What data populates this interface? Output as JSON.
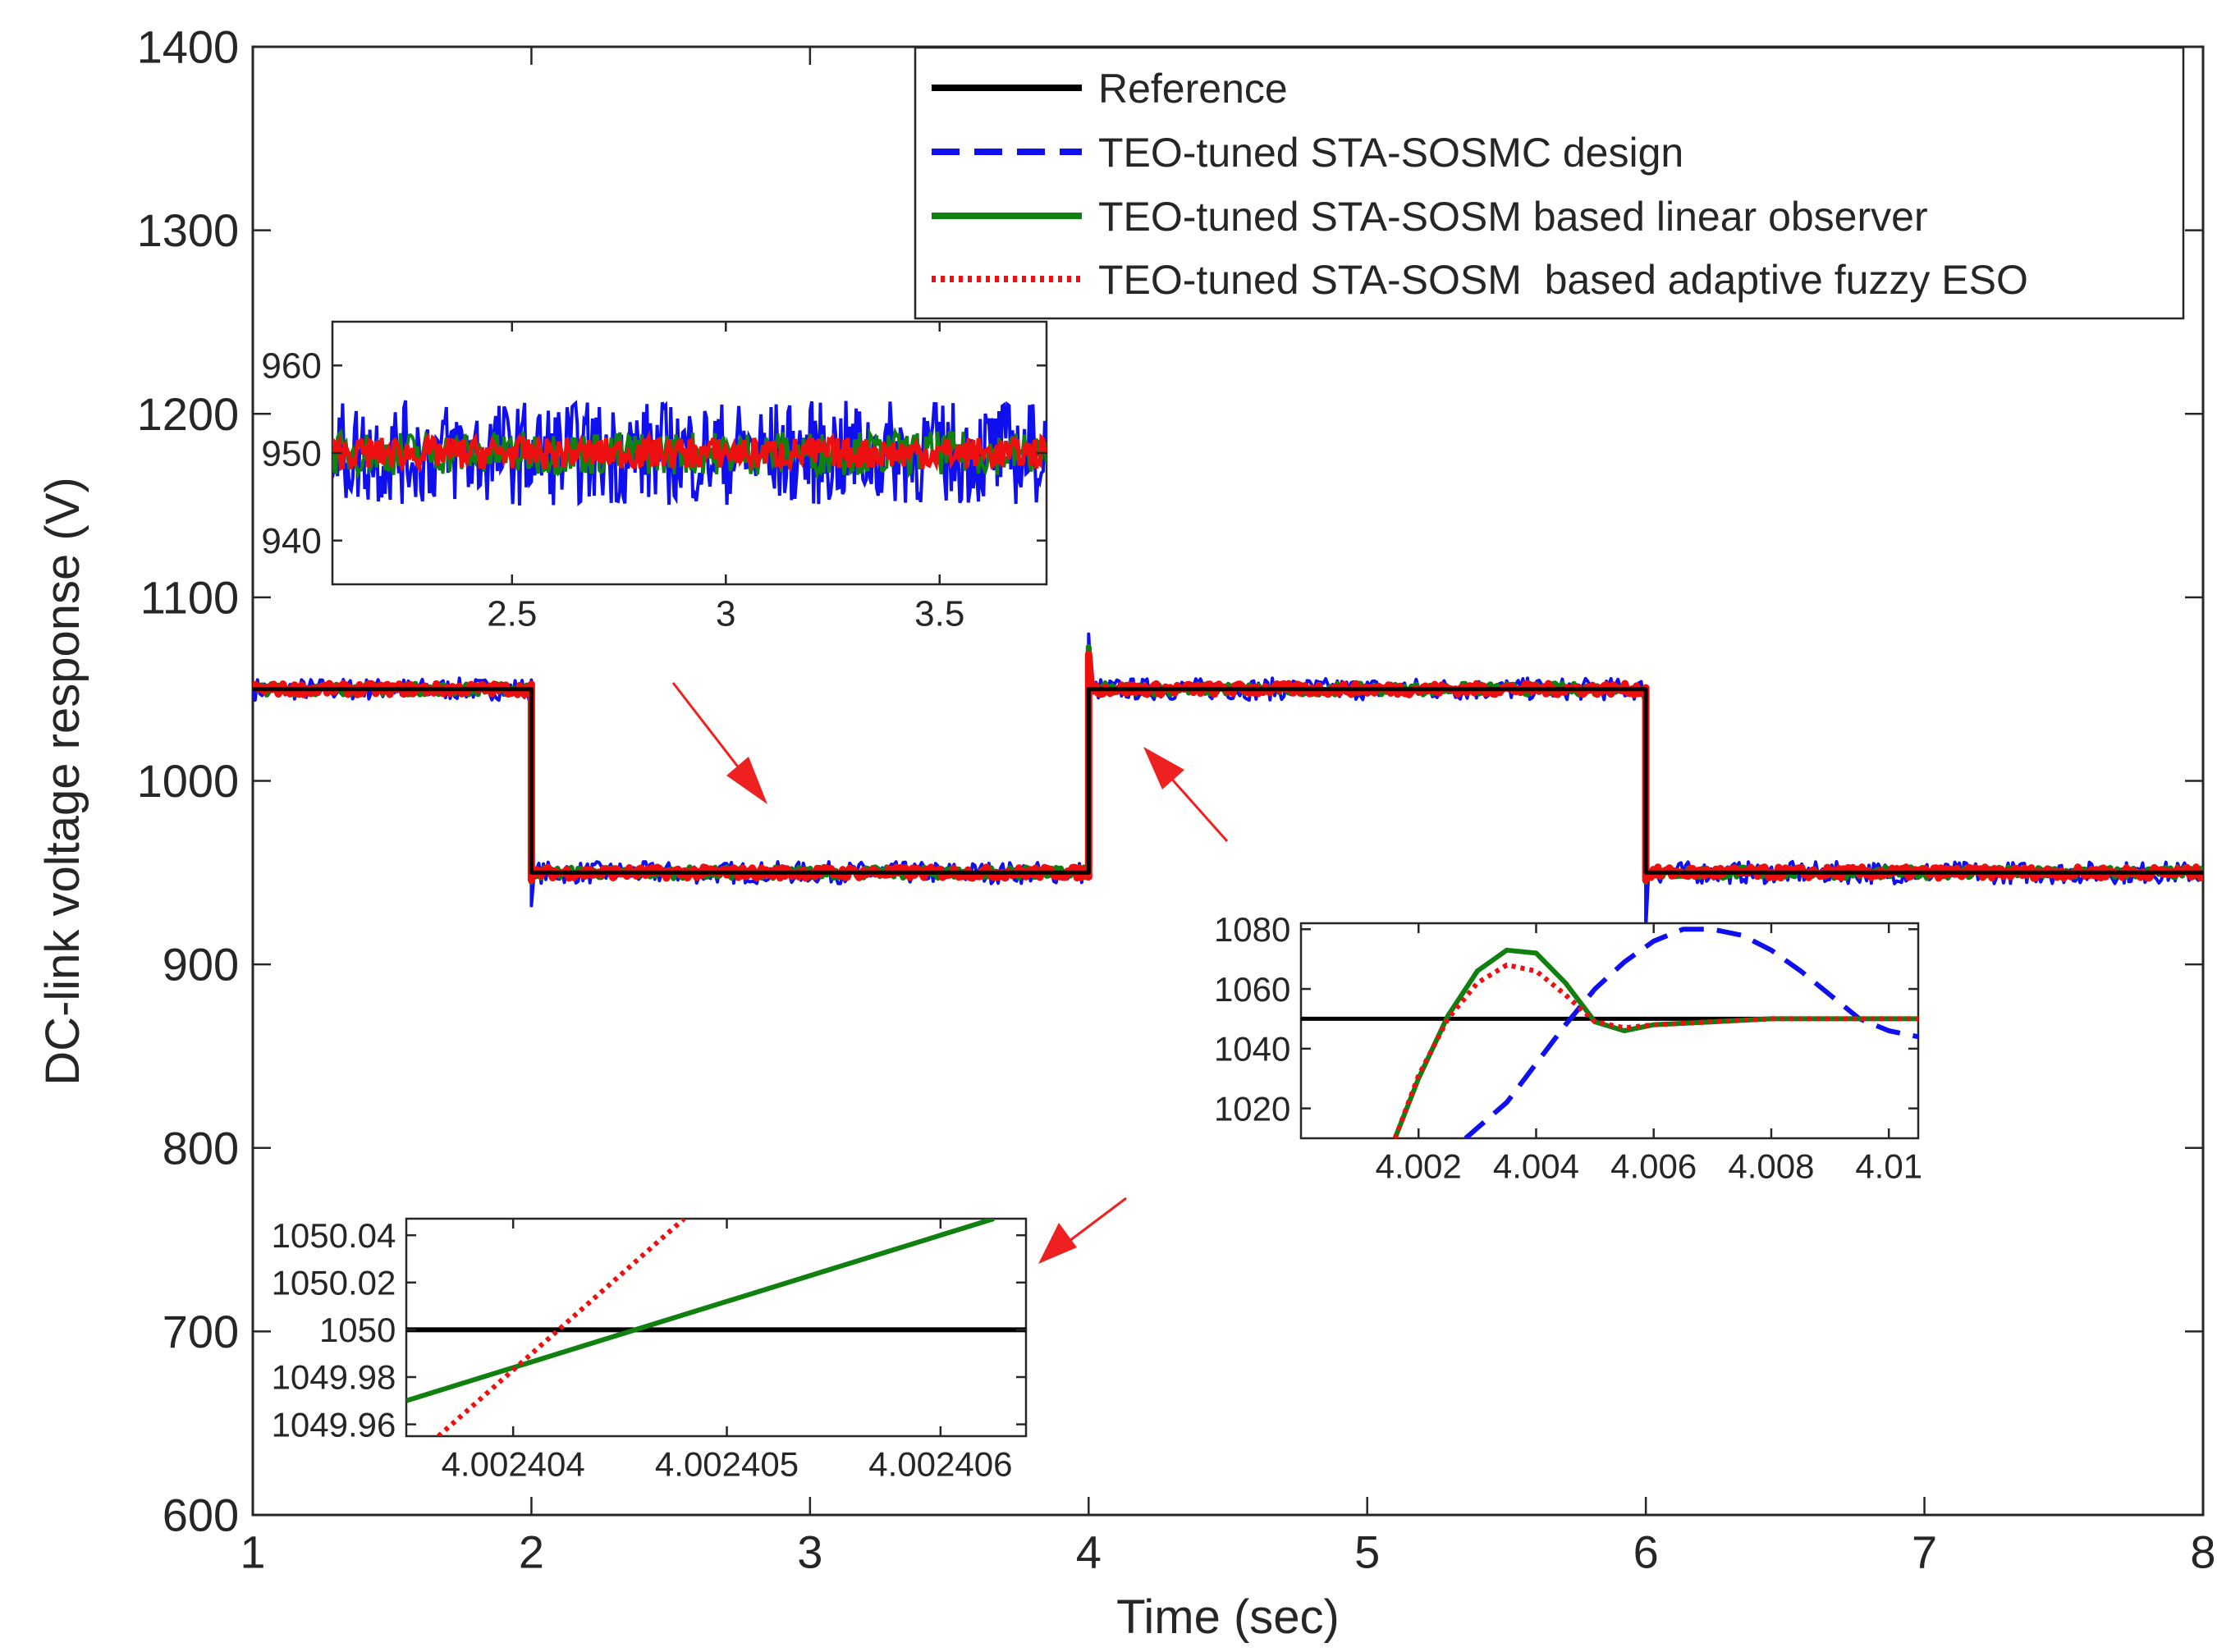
{
  "chart_data": [
    {
      "id": "main",
      "type": "line",
      "title": "",
      "xlabel": "Time (sec)",
      "ylabel": "DC-link voltage response (V)",
      "xlim": [
        1,
        8
      ],
      "ylim": [
        600,
        1400
      ],
      "xticks": [
        1,
        2,
        3,
        4,
        5,
        6,
        7,
        8
      ],
      "xtick_labels": [
        "1",
        "2",
        "3",
        "4",
        "5",
        "6",
        "7",
        "8"
      ],
      "yticks": [
        600,
        700,
        800,
        900,
        1000,
        1100,
        1200,
        1300,
        1400
      ],
      "ytick_labels": [
        "600",
        "700",
        "800",
        "900",
        "1000",
        "1100",
        "1200",
        "1300",
        "1400"
      ],
      "grid": false,
      "legend_position": "top-right",
      "series": [
        {
          "name": "Reference",
          "color": "#000000",
          "style": "solid",
          "x": [
            1,
            2,
            2,
            4,
            4,
            6,
            6,
            8
          ],
          "y": [
            1050,
            1050,
            950,
            950,
            1050,
            1050,
            950,
            950
          ]
        },
        {
          "name": "TEO-tuned STA-SOSMC design",
          "color": "#1010ee",
          "style": "dashed",
          "noise_amplitude": 6,
          "x": [
            1,
            2,
            2,
            2.01,
            4,
            4,
            4.01,
            6,
            6,
            6.01,
            8
          ],
          "y": [
            1050,
            1050,
            932,
            950,
            950,
            1080,
            1050,
            1050,
            920,
            950,
            950
          ]
        },
        {
          "name": "TEO-tuned STA-SOSM based linear observer",
          "color": "#108010",
          "style": "solid",
          "noise_amplitude": 3,
          "x": [
            1,
            2,
            2,
            2.01,
            4,
            4,
            4.01,
            6,
            6,
            6.01,
            8
          ],
          "y": [
            1050,
            1050,
            945,
            950,
            950,
            1073,
            1050,
            1050,
            945,
            950,
            950
          ]
        },
        {
          "name": "TEO-tuned STA-SOSM  based adaptive fuzzy ESO",
          "color": "#ee1010",
          "style": "dotted",
          "noise_amplitude": 3,
          "x": [
            1,
            2,
            2,
            2.01,
            4,
            4,
            4.01,
            6,
            6,
            6.01,
            8
          ],
          "y": [
            1050,
            1050,
            946,
            950,
            950,
            1069,
            1050,
            1050,
            946,
            950,
            950
          ]
        }
      ]
    },
    {
      "id": "inset-top",
      "type": "line",
      "xlim": [
        2.08,
        3.75
      ],
      "ylim": [
        935,
        965
      ],
      "xticks": [
        2.5,
        3,
        3.5
      ],
      "xtick_labels": [
        "2.5",
        "3",
        "3.5"
      ],
      "yticks": [
        940,
        950,
        960
      ],
      "ytick_labels": [
        "940",
        "950",
        "960"
      ],
      "series": [
        {
          "name": "TEO-tuned STA-SOSMC design",
          "color": "#1010ee",
          "center": 950,
          "amplitude": 6
        },
        {
          "name": "TEO-tuned STA-SOSM based linear observer",
          "color": "#108010",
          "center": 950,
          "amplitude": 2.5
        },
        {
          "name": "TEO-tuned STA-SOSM  based adaptive fuzzy ESO",
          "color": "#ee1010",
          "center": 950,
          "amplitude": 1.8
        }
      ]
    },
    {
      "id": "inset-right",
      "type": "line",
      "xlim": [
        4.0,
        4.0105
      ],
      "ylim": [
        1010,
        1082
      ],
      "xticks": [
        4.002,
        4.004,
        4.006,
        4.008,
        4.01
      ],
      "xtick_labels": [
        "4.002",
        "4.004",
        "4.006",
        "4.008",
        "4.01"
      ],
      "yticks": [
        1020,
        1040,
        1060,
        1080
      ],
      "ytick_labels": [
        "1020",
        "1040",
        "1060",
        "1080"
      ],
      "series": [
        {
          "name": "Reference",
          "color": "#000000",
          "style": "solid",
          "x": [
            4.0,
            4.0105
          ],
          "y": [
            1050,
            1050
          ]
        },
        {
          "name": "TEO-tuned STA-SOSMC design",
          "color": "#1010ee",
          "style": "dashed",
          "x": [
            4.0028,
            4.0035,
            4.004,
            4.0045,
            4.005,
            4.0055,
            4.006,
            4.0065,
            4.007,
            4.0075,
            4.008,
            4.0085,
            4.009,
            4.0095,
            4.01,
            4.0105
          ],
          "y": [
            1010,
            1022,
            1035,
            1048,
            1060,
            1069,
            1076,
            1080,
            1080,
            1078,
            1073,
            1066,
            1058,
            1050,
            1046,
            1044
          ]
        },
        {
          "name": "TEO-tuned STA-SOSM based linear observer",
          "color": "#108010",
          "style": "solid",
          "x": [
            4.0016,
            4.002,
            4.0025,
            4.003,
            4.0035,
            4.004,
            4.0045,
            4.005,
            4.0055,
            4.006,
            4.007,
            4.008,
            4.009,
            4.01,
            4.0105
          ],
          "y": [
            1010,
            1030,
            1051,
            1066,
            1073,
            1072,
            1062,
            1049,
            1046,
            1048,
            1049,
            1050,
            1050,
            1050,
            1050
          ]
        },
        {
          "name": "TEO-tuned STA-SOSM  based adaptive fuzzy ESO",
          "color": "#ee1010",
          "style": "dotted",
          "x": [
            4.0016,
            4.002,
            4.0025,
            4.003,
            4.0035,
            4.004,
            4.0045,
            4.005,
            4.0055,
            4.006,
            4.007,
            4.008,
            4.009,
            4.01,
            4.0105
          ],
          "y": [
            1010,
            1031,
            1050,
            1062,
            1068,
            1066,
            1058,
            1049,
            1047,
            1048,
            1049,
            1050,
            1050,
            1050,
            1050
          ]
        }
      ]
    },
    {
      "id": "inset-bottom",
      "type": "line",
      "xlim": [
        4.0024035,
        4.0024064
      ],
      "ylim": [
        1049.955,
        1050.047
      ],
      "xticks": [
        4.002404,
        4.002405,
        4.002406
      ],
      "xtick_labels": [
        "4.002404",
        "4.002405",
        "4.002406"
      ],
      "yticks": [
        1049.96,
        1049.98,
        1050,
        1050.02,
        1050.04
      ],
      "ytick_labels": [
        "1049.96",
        "1049.98",
        "1050",
        "1050.02",
        "1050.04"
      ],
      "series": [
        {
          "name": "Reference",
          "color": "#000000",
          "style": "solid",
          "x": [
            4.0024035,
            4.0024064
          ],
          "y": [
            1050,
            1050
          ]
        },
        {
          "name": "TEO-tuned STA-SOSM based linear observer",
          "color": "#108010",
          "style": "solid",
          "x": [
            4.0024035,
            4.00240625
          ],
          "y": [
            1049.97,
            1050.047
          ]
        },
        {
          "name": "TEO-tuned STA-SOSM  based adaptive fuzzy ESO",
          "color": "#ee1010",
          "style": "dotted",
          "x": [
            4.00240365,
            4.0024048
          ],
          "y": [
            1049.955,
            1050.047
          ]
        }
      ]
    }
  ]
}
